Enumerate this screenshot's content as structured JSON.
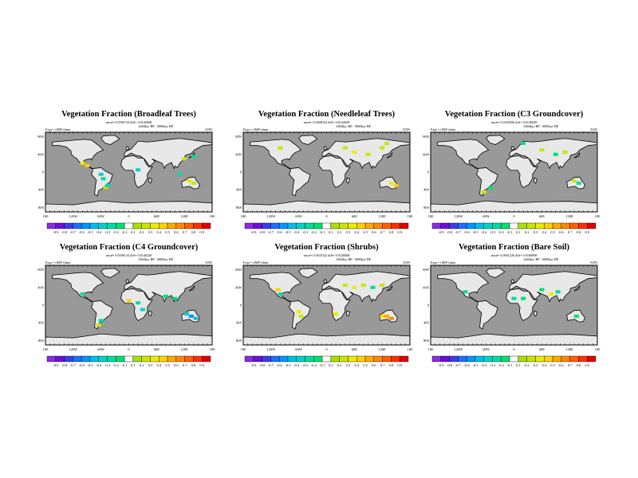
{
  "figure": {
    "panels": [
      {
        "title": "Vegetation Fraction (Broadleaf Trees)",
        "stats": "rmsd= 0.0596734 diff= 0.0146968",
        "period": "2604kyr BP - 0000kyr BP",
        "expt": "Expt = tfMF-tfmm",
        "season": "ANN",
        "patches": [
          [
            -100,
            20,
            0.3
          ],
          [
            -90,
            15,
            0.4
          ],
          [
            -60,
            -5,
            -0.4
          ],
          [
            -50,
            -35,
            0.2
          ],
          [
            -55,
            -15,
            -0.3
          ],
          [
            20,
            5,
            -0.4
          ],
          [
            110,
            -5,
            -0.3
          ],
          [
            140,
            -25,
            0.2
          ],
          [
            130,
            -20,
            0.3
          ],
          [
            120,
            30,
            0.2
          ],
          [
            140,
            35,
            -0.3
          ],
          [
            -45,
            -30,
            -0.4
          ]
        ]
      },
      {
        "title": "Vegetation Fraction (Needleleaf Trees)",
        "stats": "rmsd= 0.0408324 diff= 0.0142609",
        "period": "2604kyr BP - 0000kyr BP",
        "expt": "Expt = tfMF-tfmm",
        "season": "ANN",
        "patches": [
          [
            -100,
            55,
            0.2
          ],
          [
            40,
            55,
            0.2
          ],
          [
            60,
            45,
            0.3
          ],
          [
            90,
            40,
            0.2
          ],
          [
            120,
            55,
            0.2
          ],
          [
            140,
            -25,
            0.3
          ],
          [
            150,
            -30,
            0.4
          ],
          [
            130,
            65,
            0.2
          ]
        ]
      },
      {
        "title": "Vegetation Fraction (C3 Groundcover)",
        "stats": "rmsd= 0.0334506 diff= 0.0126049",
        "period": "2604kyr BP - 0000kyr BP",
        "expt": "Expt = tfMF-tfmm",
        "season": "ANN",
        "patches": [
          [
            20,
            65,
            -0.3
          ],
          [
            60,
            50,
            0.2
          ],
          [
            90,
            40,
            -0.2
          ],
          [
            110,
            45,
            0.2
          ],
          [
            140,
            -25,
            -0.3
          ],
          [
            -50,
            -35,
            -0.2
          ],
          [
            -65,
            -45,
            0.2
          ],
          [
            130,
            -20,
            0.2
          ]
        ]
      },
      {
        "title": "Vegetation Fraction (C4 Groundcover)",
        "stats": "rmsd= 0.0596134 diff= 0.0148248",
        "period": "2604kyr BP - 0000kyr BP",
        "expt": "Expt = tfMF-tfmm",
        "season": "ANN",
        "patches": [
          [
            -100,
            25,
            -0.3
          ],
          [
            0,
            10,
            0.4
          ],
          [
            20,
            5,
            -0.3
          ],
          [
            30,
            -10,
            -0.4
          ],
          [
            80,
            20,
            -0.2
          ],
          [
            100,
            15,
            -0.2
          ],
          [
            135,
            -25,
            -0.6
          ],
          [
            145,
            -30,
            -0.5
          ],
          [
            125,
            -20,
            -0.4
          ],
          [
            -60,
            -35,
            -0.3
          ],
          [
            -65,
            -45,
            0.2
          ]
        ]
      },
      {
        "title": "Vegetation Fraction (Shrubs)",
        "stats": "rmsd= 0.0635322 diff= 0.0140068",
        "period": "2604kyr BP - 0000kyr BP",
        "expt": "Expt = tfMF-tfmm",
        "season": "ANN",
        "patches": [
          [
            -105,
            35,
            0.4
          ],
          [
            -100,
            25,
            -0.3
          ],
          [
            -60,
            -15,
            0.3
          ],
          [
            -55,
            -25,
            0.2
          ],
          [
            20,
            -20,
            0.3
          ],
          [
            40,
            45,
            0.2
          ],
          [
            60,
            40,
            0.3
          ],
          [
            80,
            45,
            0.2
          ],
          [
            100,
            40,
            -0.3
          ],
          [
            120,
            45,
            0.2
          ],
          [
            130,
            -25,
            0.5
          ],
          [
            140,
            -30,
            0.6
          ],
          [
            120,
            -25,
            0.4
          ]
        ]
      },
      {
        "title": "Vegetation Fraction (Bare Soil)",
        "stats": "rmsd= 0.0941326 diff= 0.0168908",
        "period": "2604kyr BP - 0000kyr BP",
        "expt": "Expt = tfMF-tfmm",
        "season": "ANN",
        "patches": [
          [
            0,
            15,
            -0.3
          ],
          [
            20,
            15,
            -0.2
          ],
          [
            80,
            25,
            0.3
          ],
          [
            95,
            30,
            -0.3
          ],
          [
            60,
            35,
            -0.2
          ],
          [
            -105,
            30,
            -0.3
          ],
          [
            135,
            -25,
            -0.2
          ]
        ]
      }
    ],
    "lon_labels": [
      "180",
      "120W",
      "60W",
      "0",
      "60E",
      "120E",
      "180"
    ],
    "lat_labels": [
      "80N",
      "40N",
      "0",
      "40S",
      "80S"
    ],
    "colorbar_labels": [
      "-0.9",
      "-0.8",
      "-0.7",
      "-0.6",
      "-0.5",
      "-0.4",
      "-0.3",
      "-0.2",
      "-0.1",
      "0.1",
      "0.2",
      "0.3",
      "0.4",
      "0.5",
      "0.6",
      "0.7",
      "0.8",
      "0.9"
    ],
    "colorbar_colors": [
      "#8a2be2",
      "#6a10d8",
      "#3c3ce8",
      "#1e6eff",
      "#0096ff",
      "#00bee8",
      "#00d2c8",
      "#00dca0",
      "#00e070",
      "#ffffff",
      "#a8e000",
      "#cce400",
      "#ecec00",
      "#ffd200",
      "#ffaa00",
      "#ff8800",
      "#ff6000",
      "#ff3000",
      "#e00000"
    ],
    "ocean_color": "#999999",
    "land_color": "#e8e8e8"
  }
}
